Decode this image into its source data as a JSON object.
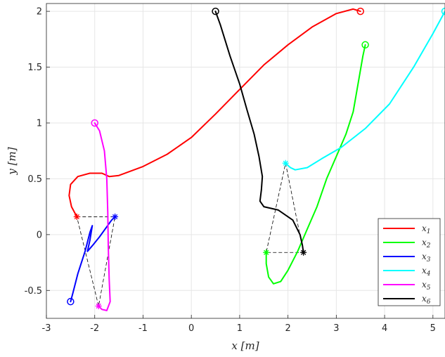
{
  "chart_data": {
    "type": "line",
    "title": "",
    "xlabel": "x [m]",
    "ylabel": "y [m]",
    "xlim": [
      -3,
      5.25
    ],
    "ylim": [
      -0.75,
      2.07
    ],
    "grid": true,
    "xticks": [
      -3,
      -2,
      -1,
      0,
      1,
      2,
      3,
      4,
      5
    ],
    "yticks": [
      -0.5,
      0,
      0.5,
      1,
      1.5,
      2
    ],
    "xtick_labels": [
      "-3",
      "-2",
      "-1",
      "0",
      "1",
      "2",
      "3",
      "4",
      "5"
    ],
    "ytick_labels": [
      "-0.5",
      "0",
      "0.5",
      "1",
      "1.5",
      "2"
    ],
    "legend_position": "bottom-right",
    "series": [
      {
        "name": "x1",
        "color": "#ff0000",
        "start": [
          3.5,
          2.0
        ],
        "end": [
          -2.37,
          0.16
        ],
        "points": [
          [
            3.5,
            2.0
          ],
          [
            3.35,
            2.02
          ],
          [
            3.0,
            1.98
          ],
          [
            2.5,
            1.86
          ],
          [
            2.0,
            1.7
          ],
          [
            1.5,
            1.52
          ],
          [
            1.0,
            1.3
          ],
          [
            0.5,
            1.08
          ],
          [
            0.0,
            0.87
          ],
          [
            -0.5,
            0.72
          ],
          [
            -1.0,
            0.61
          ],
          [
            -1.5,
            0.53
          ],
          [
            -1.7,
            0.52
          ],
          [
            -1.85,
            0.55
          ],
          [
            -2.1,
            0.55
          ],
          [
            -2.35,
            0.52
          ],
          [
            -2.5,
            0.45
          ],
          [
            -2.53,
            0.35
          ],
          [
            -2.48,
            0.25
          ],
          [
            -2.37,
            0.16
          ]
        ]
      },
      {
        "name": "x2",
        "color": "#00ff00",
        "start": [
          3.6,
          1.7
        ],
        "end": [
          1.55,
          -0.16
        ],
        "points": [
          [
            3.6,
            1.7
          ],
          [
            3.55,
            1.6
          ],
          [
            3.45,
            1.35
          ],
          [
            3.35,
            1.1
          ],
          [
            3.2,
            0.9
          ],
          [
            3.0,
            0.7
          ],
          [
            2.8,
            0.5
          ],
          [
            2.6,
            0.25
          ],
          [
            2.4,
            0.05
          ],
          [
            2.2,
            -0.15
          ],
          [
            2.0,
            -0.32
          ],
          [
            1.85,
            -0.42
          ],
          [
            1.7,
            -0.44
          ],
          [
            1.6,
            -0.38
          ],
          [
            1.55,
            -0.26
          ],
          [
            1.55,
            -0.16
          ]
        ]
      },
      {
        "name": "x3",
        "color": "#0000ff",
        "start": [
          -2.5,
          -0.6
        ],
        "end": [
          -1.58,
          0.16
        ],
        "points": [
          [
            -2.5,
            -0.6
          ],
          [
            -2.45,
            -0.52
          ],
          [
            -2.35,
            -0.35
          ],
          [
            -2.2,
            -0.15
          ],
          [
            -2.1,
            0.02
          ],
          [
            -2.05,
            0.08
          ],
          [
            -2.1,
            -0.05
          ],
          [
            -2.15,
            -0.15
          ],
          [
            -2.05,
            -0.1
          ],
          [
            -1.9,
            -0.02
          ],
          [
            -1.75,
            0.07
          ],
          [
            -1.65,
            0.13
          ],
          [
            -1.58,
            0.16
          ]
        ]
      },
      {
        "name": "x4",
        "color": "#00ffff",
        "start": [
          5.25,
          2.0
        ],
        "end": [
          1.95,
          0.64
        ],
        "points": [
          [
            5.25,
            2.0
          ],
          [
            5.0,
            1.8
          ],
          [
            4.6,
            1.5
          ],
          [
            4.1,
            1.17
          ],
          [
            3.6,
            0.95
          ],
          [
            3.1,
            0.78
          ],
          [
            2.7,
            0.68
          ],
          [
            2.4,
            0.6
          ],
          [
            2.15,
            0.58
          ],
          [
            2.05,
            0.6
          ],
          [
            1.95,
            0.64
          ]
        ]
      },
      {
        "name": "x5",
        "color": "#ff00ff",
        "start": [
          -2.0,
          1.0
        ],
        "end": [
          -1.92,
          -0.64
        ],
        "points": [
          [
            -2.0,
            1.0
          ],
          [
            -1.9,
            0.93
          ],
          [
            -1.8,
            0.75
          ],
          [
            -1.75,
            0.5
          ],
          [
            -1.73,
            0.2
          ],
          [
            -1.72,
            -0.1
          ],
          [
            -1.7,
            -0.4
          ],
          [
            -1.68,
            -0.6
          ],
          [
            -1.75,
            -0.68
          ],
          [
            -1.85,
            -0.67
          ],
          [
            -1.92,
            -0.64
          ]
        ]
      },
      {
        "name": "x6",
        "color": "#000000",
        "start": [
          0.5,
          2.0
        ],
        "end": [
          2.32,
          -0.16
        ],
        "points": [
          [
            0.5,
            2.0
          ],
          [
            0.6,
            1.88
          ],
          [
            0.8,
            1.6
          ],
          [
            1.0,
            1.35
          ],
          [
            1.15,
            1.12
          ],
          [
            1.3,
            0.9
          ],
          [
            1.4,
            0.7
          ],
          [
            1.47,
            0.52
          ],
          [
            1.45,
            0.4
          ],
          [
            1.42,
            0.3
          ],
          [
            1.5,
            0.25
          ],
          [
            1.8,
            0.22
          ],
          [
            2.1,
            0.13
          ],
          [
            2.25,
            0.0
          ],
          [
            2.3,
            -0.1
          ],
          [
            2.32,
            -0.16
          ]
        ]
      }
    ],
    "formations": [
      {
        "color": "#000000",
        "dash": true,
        "triangle": [
          [
            -2.37,
            0.16
          ],
          [
            -1.58,
            0.16
          ],
          [
            -1.92,
            -0.64
          ]
        ]
      },
      {
        "color": "#000000",
        "dash": true,
        "triangle": [
          [
            1.95,
            0.64
          ],
          [
            2.32,
            -0.16
          ],
          [
            1.55,
            -0.16
          ]
        ]
      }
    ],
    "legend": [
      "x1",
      "x2",
      "x3",
      "x4",
      "x5",
      "x6"
    ]
  }
}
